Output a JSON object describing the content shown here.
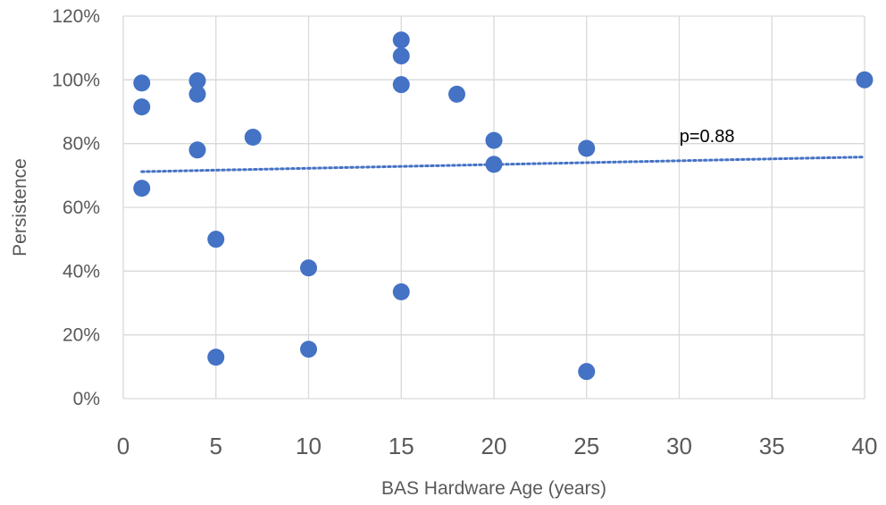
{
  "chart_data": {
    "type": "scatter",
    "title": "",
    "xlabel": "BAS Hardware Age (years)",
    "ylabel": "Persistence",
    "xlim": [
      0,
      40
    ],
    "ylim": [
      0,
      120
    ],
    "x_ticks": [
      "0",
      "5",
      "10",
      "15",
      "20",
      "25",
      "30",
      "35",
      "40"
    ],
    "y_ticks": [
      "0%",
      "20%",
      "40%",
      "60%",
      "80%",
      "100%",
      "120%"
    ],
    "grid": true,
    "legend": "none",
    "series": [
      {
        "color": "#4472C4",
        "points": [
          {
            "x": 1,
            "y": 99
          },
          {
            "x": 1,
            "y": 91.5
          },
          {
            "x": 1,
            "y": 66
          },
          {
            "x": 4,
            "y": 99.7
          },
          {
            "x": 4,
            "y": 95.5
          },
          {
            "x": 4,
            "y": 78
          },
          {
            "x": 5,
            "y": 50
          },
          {
            "x": 5,
            "y": 13
          },
          {
            "x": 7,
            "y": 82
          },
          {
            "x": 10,
            "y": 41
          },
          {
            "x": 10,
            "y": 15.5
          },
          {
            "x": 15,
            "y": 112.5
          },
          {
            "x": 15,
            "y": 107.5
          },
          {
            "x": 15,
            "y": 98.5
          },
          {
            "x": 15,
            "y": 33.5
          },
          {
            "x": 18,
            "y": 95.5
          },
          {
            "x": 20,
            "y": 81
          },
          {
            "x": 20,
            "y": 73.5
          },
          {
            "x": 25,
            "y": 78.5
          },
          {
            "x": 25,
            "y": 8.5
          },
          {
            "x": 40,
            "y": 100
          }
        ]
      }
    ],
    "trendline": {
      "style": "dotted",
      "color": "#4472C4",
      "x_start": 1,
      "x_end": 40,
      "y_start": 71.2,
      "y_end": 75.8
    },
    "annotations": [
      {
        "text": "p=0.88",
        "x": 31.5,
        "y": 82.5
      }
    ]
  }
}
